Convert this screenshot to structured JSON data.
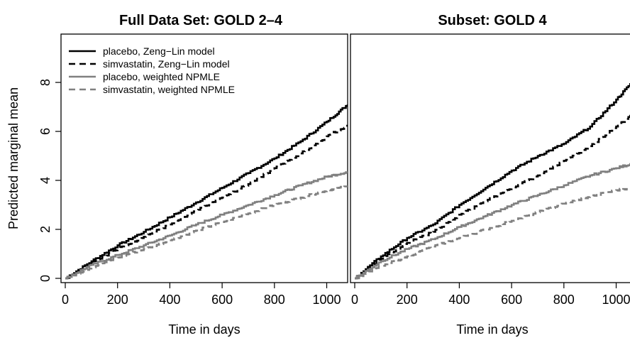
{
  "chart_data": [
    {
      "type": "line",
      "title": "Full Data Set: GOLD 2–4",
      "xlabel": "Time in days",
      "ylabel": "Predicted marginal mean",
      "xlim": [
        0,
        1080
      ],
      "ylim": [
        0,
        9.8
      ],
      "x_ticks": [
        0,
        200,
        400,
        600,
        800,
        1000
      ],
      "x_tick_labels": [
        "0",
        "200",
        "400",
        "600",
        "800",
        "1000"
      ],
      "y_ticks": [
        0,
        2,
        4,
        6,
        8
      ],
      "y_tick_labels": [
        "0",
        "2",
        "4",
        "6",
        "8"
      ],
      "grid": false,
      "legend_position": "top-left",
      "series": [
        {
          "name": "placebo, Zeng−Lin model",
          "color": "#000000",
          "dash": "solid",
          "x": [
            0,
            100,
            200,
            300,
            400,
            500,
            600,
            700,
            800,
            900,
            1000,
            1080
          ],
          "y": [
            0,
            0.7,
            1.35,
            1.9,
            2.5,
            3.1,
            3.7,
            4.3,
            4.9,
            5.6,
            6.4,
            7.1
          ]
        },
        {
          "name": "simvastatin, Zeng−Lin model",
          "color": "#000000",
          "dash": "dashed",
          "x": [
            0,
            100,
            200,
            300,
            400,
            500,
            600,
            700,
            800,
            900,
            1000,
            1080
          ],
          "y": [
            0,
            0.65,
            1.2,
            1.7,
            2.2,
            2.75,
            3.3,
            3.85,
            4.5,
            5.1,
            5.8,
            6.25
          ]
        },
        {
          "name": "placebo, weighted NPMLE",
          "color": "#808080",
          "dash": "solid",
          "x": [
            0,
            100,
            200,
            300,
            400,
            500,
            600,
            700,
            800,
            900,
            1000,
            1080
          ],
          "y": [
            0,
            0.55,
            0.95,
            1.35,
            1.75,
            2.2,
            2.6,
            3.0,
            3.4,
            3.8,
            4.15,
            4.35
          ]
        },
        {
          "name": "simvastatin, weighted NPMLE",
          "color": "#808080",
          "dash": "dashed",
          "x": [
            0,
            100,
            200,
            300,
            400,
            500,
            600,
            700,
            800,
            900,
            1000,
            1080
          ],
          "y": [
            0,
            0.45,
            0.85,
            1.2,
            1.55,
            1.95,
            2.3,
            2.65,
            3.0,
            3.3,
            3.6,
            3.75
          ]
        }
      ]
    },
    {
      "type": "line",
      "title": "Subset: GOLD 4",
      "xlabel": "Time in days",
      "ylabel": "",
      "xlim": [
        0,
        1080
      ],
      "ylim": [
        0,
        9.8
      ],
      "x_ticks": [
        0,
        200,
        400,
        600,
        800,
        1000
      ],
      "x_tick_labels": [
        "0",
        "200",
        "400",
        "600",
        "800",
        "1000"
      ],
      "grid": false,
      "series": [
        {
          "name": "",
          "color": "#000000",
          "dash": "solid",
          "x": [
            0,
            100,
            200,
            300,
            400,
            500,
            600,
            700,
            800,
            900,
            1000,
            1080
          ],
          "y": [
            0,
            0.9,
            1.65,
            2.2,
            3.0,
            3.7,
            4.4,
            5.0,
            5.5,
            6.2,
            7.3,
            8.25
          ]
        },
        {
          "name": "",
          "color": "#000000",
          "dash": "dashed",
          "x": [
            0,
            100,
            200,
            300,
            400,
            500,
            600,
            700,
            800,
            900,
            1000,
            1080
          ],
          "y": [
            0,
            0.8,
            1.45,
            1.9,
            2.6,
            3.15,
            3.7,
            4.2,
            4.8,
            5.4,
            6.2,
            6.85
          ]
        },
        {
          "name": "",
          "color": "#808080",
          "dash": "solid",
          "x": [
            0,
            100,
            200,
            300,
            400,
            500,
            600,
            700,
            800,
            900,
            1000,
            1080
          ],
          "y": [
            0,
            0.7,
            1.2,
            1.6,
            2.1,
            2.55,
            3.0,
            3.4,
            3.8,
            4.2,
            4.5,
            4.75
          ]
        },
        {
          "name": "",
          "color": "#808080",
          "dash": "dashed",
          "x": [
            0,
            100,
            200,
            300,
            400,
            500,
            600,
            700,
            800,
            900,
            1000,
            1080
          ],
          "y": [
            0,
            0.5,
            0.9,
            1.3,
            1.65,
            2.0,
            2.35,
            2.7,
            3.05,
            3.35,
            3.6,
            3.75
          ]
        }
      ]
    }
  ]
}
